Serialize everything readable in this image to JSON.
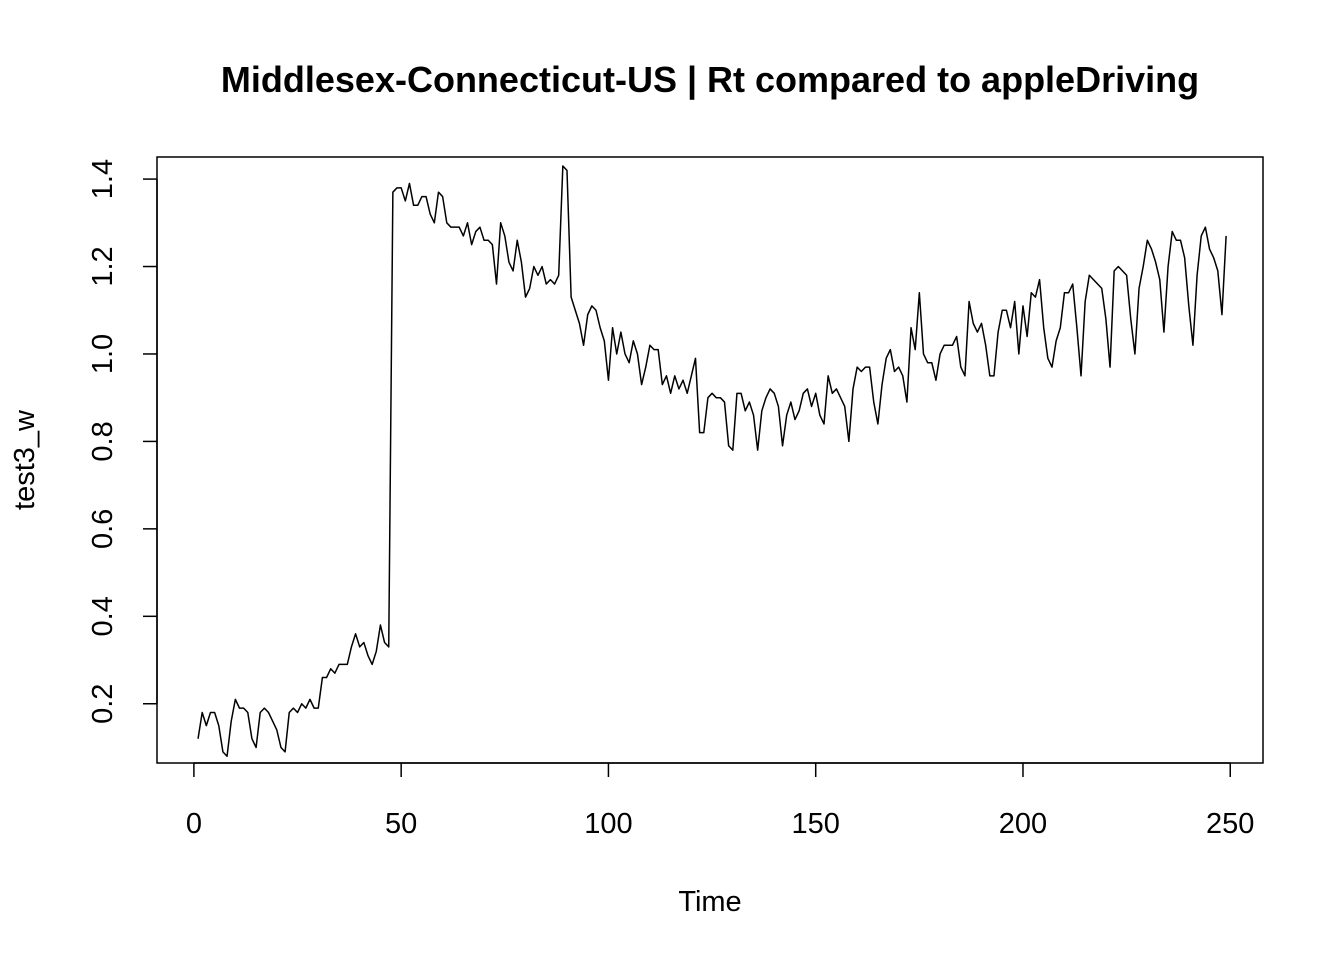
{
  "chart_data": {
    "type": "line",
    "title": "Middlesex-Connecticut-US | Rt compared to appleDriving",
    "xlabel": "Time",
    "ylabel": "test3_w",
    "xlim": [
      -8.9,
      257.9
    ],
    "ylim": [
      0.0645,
      1.4505
    ],
    "x_ticks": [
      0,
      50,
      100,
      150,
      200,
      250
    ],
    "y_ticks": [
      0.2,
      0.4,
      0.6,
      0.8,
      1.0,
      1.2,
      1.4
    ],
    "x_tick_labels": [
      "0",
      "50",
      "100",
      "150",
      "200",
      "250"
    ],
    "y_tick_labels": [
      "0.2",
      "0.4",
      "0.6",
      "0.8",
      "1.0",
      "1.2",
      "1.4"
    ],
    "grid": false,
    "line_color": "#000000",
    "series": [
      {
        "x_start": 1,
        "values": [
          0.12,
          0.18,
          0.15,
          0.18,
          0.18,
          0.15,
          0.09,
          0.08,
          0.16,
          0.21,
          0.19,
          0.19,
          0.18,
          0.12,
          0.1,
          0.18,
          0.19,
          0.18,
          0.16,
          0.14,
          0.1,
          0.09,
          0.18,
          0.19,
          0.18,
          0.2,
          0.19,
          0.21,
          0.19,
          0.19,
          0.26,
          0.26,
          0.28,
          0.27,
          0.29,
          0.29,
          0.29,
          0.33,
          0.36,
          0.33,
          0.34,
          0.31,
          0.29,
          0.32,
          0.38,
          0.34,
          0.33,
          1.37,
          1.38,
          1.38,
          1.35,
          1.39,
          1.34,
          1.34,
          1.36,
          1.36,
          1.32,
          1.3,
          1.37,
          1.36,
          1.3,
          1.29,
          1.29,
          1.29,
          1.27,
          1.3,
          1.25,
          1.28,
          1.29,
          1.26,
          1.26,
          1.25,
          1.16,
          1.3,
          1.27,
          1.21,
          1.19,
          1.26,
          1.21,
          1.13,
          1.15,
          1.2,
          1.18,
          1.2,
          1.16,
          1.17,
          1.16,
          1.18,
          1.43,
          1.42,
          1.13,
          1.1,
          1.07,
          1.02,
          1.09,
          1.11,
          1.1,
          1.06,
          1.03,
          0.94,
          1.06,
          1.0,
          1.05,
          1.0,
          0.98,
          1.03,
          1.0,
          0.93,
          0.97,
          1.02,
          1.01,
          1.01,
          0.93,
          0.95,
          0.91,
          0.95,
          0.92,
          0.94,
          0.91,
          0.95,
          0.99,
          0.82,
          0.82,
          0.9,
          0.91,
          0.9,
          0.9,
          0.89,
          0.79,
          0.78,
          0.91,
          0.91,
          0.87,
          0.89,
          0.86,
          0.78,
          0.87,
          0.9,
          0.92,
          0.91,
          0.88,
          0.79,
          0.86,
          0.89,
          0.85,
          0.87,
          0.91,
          0.92,
          0.88,
          0.91,
          0.86,
          0.84,
          0.95,
          0.91,
          0.92,
          0.9,
          0.88,
          0.8,
          0.92,
          0.97,
          0.96,
          0.97,
          0.97,
          0.89,
          0.84,
          0.93,
          0.99,
          1.01,
          0.96,
          0.97,
          0.95,
          0.89,
          1.06,
          1.01,
          1.14,
          1.0,
          0.98,
          0.98,
          0.94,
          1.0,
          1.02,
          1.02,
          1.02,
          1.04,
          0.97,
          0.95,
          1.12,
          1.07,
          1.05,
          1.07,
          1.02,
          0.95,
          0.95,
          1.05,
          1.1,
          1.1,
          1.06,
          1.12,
          1.0,
          1.11,
          1.04,
          1.14,
          1.13,
          1.17,
          1.06,
          0.99,
          0.97,
          1.03,
          1.06,
          1.14,
          1.14,
          1.16,
          1.06,
          0.95,
          1.12,
          1.18,
          1.17,
          1.16,
          1.15,
          1.08,
          0.97,
          1.19,
          1.2,
          1.19,
          1.18,
          1.08,
          1.0,
          1.15,
          1.2,
          1.26,
          1.24,
          1.21,
          1.17,
          1.05,
          1.2,
          1.28,
          1.26,
          1.26,
          1.22,
          1.11,
          1.02,
          1.18,
          1.27,
          1.29,
          1.24,
          1.22,
          1.19,
          1.09,
          1.27
        ]
      }
    ]
  }
}
